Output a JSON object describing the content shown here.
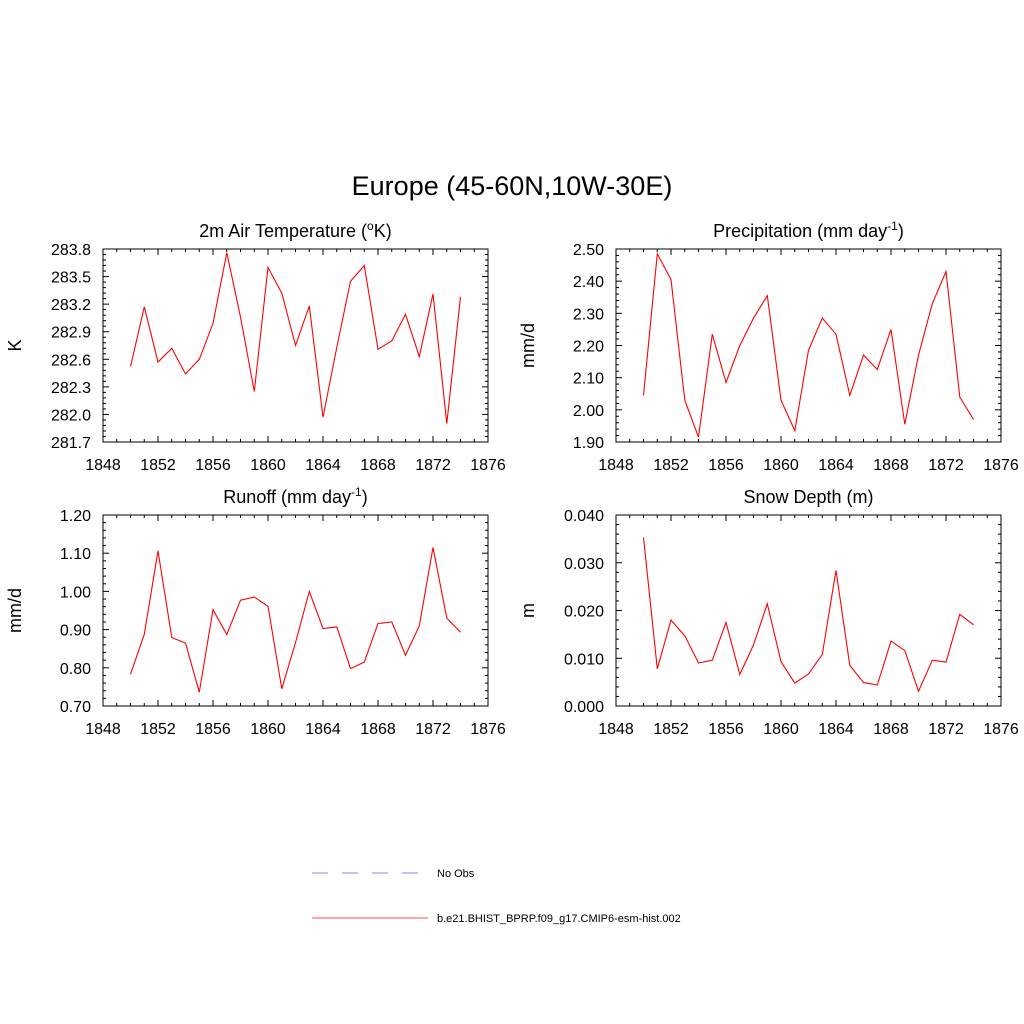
{
  "figure": {
    "title": "Europe (45-60N,10W-30E)"
  },
  "legend": {
    "entries": [
      {
        "label": "No Obs",
        "style": "dashed",
        "color": "#9d9dff"
      },
      {
        "label": "b.e21.BHIST_BPRP.f09_g17.CMIP6-esm-hist.002",
        "style": "solid",
        "color": "#ff0000"
      }
    ]
  },
  "chart_data": [
    {
      "type": "line",
      "title": "2m Air Temperature",
      "title_superscript_label": "o",
      "title_display": "2m Air Temperature (oK)",
      "ylabel": "K",
      "xlim": [
        1848,
        1876
      ],
      "ylim": [
        281.7,
        283.8
      ],
      "xticks": [
        "1848",
        "1852",
        "1856",
        "1860",
        "1864",
        "1868",
        "1872",
        "1876"
      ],
      "yticks": [
        "281.7",
        "282.0",
        "282.3",
        "282.6",
        "282.9",
        "283.2",
        "283.5",
        "283.8"
      ],
      "series": [
        {
          "name": "b.e21.BHIST_BPRP.f09_g17.CMIP6-esm-hist.002",
          "color": "#ff0000",
          "x": [
            1850,
            1851,
            1852,
            1853,
            1854,
            1855,
            1856,
            1857,
            1858,
            1859,
            1860,
            1861,
            1862,
            1863,
            1864,
            1865,
            1866,
            1867,
            1868,
            1869,
            1870,
            1871,
            1872,
            1873,
            1874
          ],
          "values": [
            282.52,
            283.17,
            282.57,
            282.72,
            282.44,
            282.6,
            282.99,
            283.76,
            283.06,
            282.25,
            283.6,
            283.32,
            282.75,
            283.18,
            281.97,
            282.73,
            283.45,
            283.62,
            282.71,
            282.8,
            283.09,
            282.63,
            283.31,
            281.9,
            283.28
          ]
        }
      ]
    },
    {
      "type": "line",
      "title": "Precipitation (mm day",
      "title_superscript": "-1",
      "title_close": ")",
      "title_display": "Precipitation (mm day-1)",
      "ylabel": "mm/d",
      "xlim": [
        1848,
        1876
      ],
      "ylim": [
        1.9,
        2.5
      ],
      "xticks": [
        "1848",
        "1852",
        "1856",
        "1860",
        "1864",
        "1868",
        "1872",
        "1876"
      ],
      "yticks": [
        "1.90",
        "2.00",
        "2.10",
        "2.20",
        "2.30",
        "2.40",
        "2.50"
      ],
      "series": [
        {
          "name": "b.e21.BHIST_BPRP.f09_g17.CMIP6-esm-hist.002",
          "color": "#ff0000",
          "x": [
            1850,
            1851,
            1852,
            1853,
            1854,
            1855,
            1856,
            1857,
            1858,
            1859,
            1860,
            1861,
            1862,
            1863,
            1864,
            1865,
            1866,
            1867,
            1868,
            1869,
            1870,
            1871,
            1872,
            1873,
            1874
          ],
          "values": [
            2.045,
            2.485,
            2.405,
            2.03,
            1.915,
            2.235,
            2.085,
            2.2,
            2.285,
            2.355,
            2.03,
            1.935,
            2.185,
            2.285,
            2.235,
            2.045,
            2.17,
            2.125,
            2.25,
            1.955,
            2.17,
            2.33,
            2.43,
            2.04,
            1.97
          ]
        }
      ]
    },
    {
      "type": "line",
      "title": "Runoff (mm day",
      "title_superscript": "-1",
      "title_close": ")",
      "title_display": "Runoff (mm day-1)",
      "ylabel": "mm/d",
      "xlim": [
        1848,
        1876
      ],
      "ylim": [
        0.7,
        1.2
      ],
      "xticks": [
        "1848",
        "1852",
        "1856",
        "1860",
        "1864",
        "1868",
        "1872",
        "1876"
      ],
      "yticks": [
        "0.70",
        "0.80",
        "0.90",
        "1.00",
        "1.10",
        "1.20"
      ],
      "series": [
        {
          "name": "b.e21.BHIST_BPRP.f09_g17.CMIP6-esm-hist.002",
          "color": "#ff0000",
          "x": [
            1850,
            1851,
            1852,
            1853,
            1854,
            1855,
            1856,
            1857,
            1858,
            1859,
            1860,
            1861,
            1862,
            1863,
            1864,
            1865,
            1866,
            1867,
            1868,
            1869,
            1870,
            1871,
            1872,
            1873,
            1874
          ],
          "values": [
            0.783,
            0.888,
            1.106,
            0.879,
            0.865,
            0.736,
            0.952,
            0.887,
            0.977,
            0.985,
            0.961,
            0.745,
            0.866,
            1.0,
            0.903,
            0.907,
            0.798,
            0.815,
            0.916,
            0.92,
            0.833,
            0.91,
            1.115,
            0.93,
            0.893
          ]
        }
      ]
    },
    {
      "type": "line",
      "title": "Snow Depth (m)",
      "title_display": "Snow Depth (m)",
      "ylabel": "m",
      "xlim": [
        1848,
        1876
      ],
      "ylim": [
        0.0,
        0.04
      ],
      "xticks": [
        "1848",
        "1852",
        "1856",
        "1860",
        "1864",
        "1868",
        "1872",
        "1876"
      ],
      "yticks": [
        "0.000",
        "0.010",
        "0.020",
        "0.030",
        "0.040"
      ],
      "series": [
        {
          "name": "b.e21.BHIST_BPRP.f09_g17.CMIP6-esm-hist.002",
          "color": "#ff0000",
          "x": [
            1850,
            1851,
            1852,
            1853,
            1854,
            1855,
            1856,
            1857,
            1858,
            1859,
            1860,
            1861,
            1862,
            1863,
            1864,
            1865,
            1866,
            1867,
            1868,
            1869,
            1870,
            1871,
            1872,
            1873,
            1874
          ],
          "values": [
            0.0353,
            0.0078,
            0.018,
            0.0147,
            0.009,
            0.0096,
            0.0175,
            0.0066,
            0.0128,
            0.0214,
            0.0093,
            0.0048,
            0.0067,
            0.0108,
            0.0284,
            0.0085,
            0.0049,
            0.0044,
            0.0136,
            0.0116,
            0.0031,
            0.0096,
            0.0092,
            0.0192,
            0.017
          ]
        }
      ]
    }
  ]
}
